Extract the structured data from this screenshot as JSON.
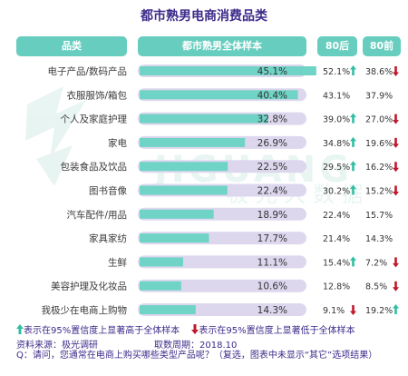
{
  "title": "都市熟男电商消费品类",
  "headers": {
    "category": "品类",
    "overall": "都市熟男全体样本",
    "gen80": "80后",
    "gen80pre": "80前"
  },
  "chart_data": {
    "type": "bar",
    "title": "都市熟男电商消费品类",
    "categories": [
      "电子产品/数码产品",
      "衣服服饰/箱包",
      "个人及家庭护理",
      "家电",
      "包装食品及饮品",
      "图书音像",
      "汽车配件/用品",
      "家具家纺",
      "生鲜",
      "美容护理及化妆品",
      "我极少在电商上购物"
    ],
    "values": [
      45.1,
      40.4,
      32.8,
      26.9,
      22.5,
      22.4,
      18.9,
      17.7,
      11.1,
      10.6,
      14.3
    ],
    "value_labels": [
      "45.1%",
      "40.4%",
      "32.8%",
      "26.9%",
      "22.5%",
      "22.4%",
      "18.9%",
      "17.7%",
      "11.1%",
      "10.6%",
      "14.3%"
    ],
    "xlim": [
      0,
      50
    ],
    "gen80": [
      "52.1%",
      "43.1%",
      "39.0%",
      "34.8%",
      "29.5%",
      "30.2%",
      "22.4%",
      "21.4%",
      "15.4%",
      "12.8%",
      "9.1%"
    ],
    "gen80_sig": [
      "up",
      "",
      "up",
      "up",
      "up",
      "up",
      "",
      "",
      "up",
      "",
      "down"
    ],
    "gen80pre": [
      "38.6%",
      "37.9%",
      "27.0%",
      "19.6%",
      "16.2%",
      "15.2%",
      "15.7%",
      "14.3%",
      "7.2%",
      "8.5%",
      "19.2%"
    ],
    "gen80pre_sig": [
      "down",
      "",
      "down",
      "down",
      "down",
      "down",
      "",
      "",
      "down",
      "down",
      "up"
    ],
    "bar_color": "#6fd3c6",
    "track_color": "#ddd7ee",
    "up_color": "#2fbfa2",
    "down_color": "#c0182a"
  },
  "legend": {
    "up_text": "表示在95%置信度上显著高于全体样本",
    "down_text": "表示在95%置信度上显著低于全体样本"
  },
  "source": "资料来源：极光调研",
  "period": "取数周期：2018.10",
  "question": "Q：请问，您通常在电商上购买哪些类型产品呢？（复选，图表中未显示“其它”选项结果）",
  "watermark": "JIGUANG 极光大数据"
}
